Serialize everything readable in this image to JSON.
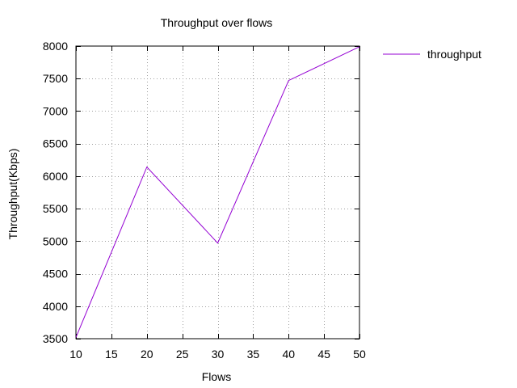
{
  "colors": {
    "series": "#9400d3",
    "grid": "#a0a0a0",
    "axis": "#000000",
    "background": "#ffffff"
  },
  "chart_data": {
    "type": "line",
    "title": "Throughput over flows",
    "xlabel": "Flows",
    "ylabel": "Throughput(Kbps)",
    "xlim": [
      10,
      50
    ],
    "ylim": [
      3500,
      8000
    ],
    "xticks": [
      10,
      15,
      20,
      25,
      30,
      35,
      40,
      45,
      50
    ],
    "yticks": [
      3500,
      4000,
      4500,
      5000,
      5500,
      6000,
      6500,
      7000,
      7500,
      8000
    ],
    "grid": true,
    "legend": "top-right outside",
    "series": [
      {
        "name": "throughput",
        "x": [
          10,
          20,
          30,
          40,
          50
        ],
        "y": [
          3520,
          6140,
          4970,
          7470,
          7990
        ]
      }
    ]
  }
}
